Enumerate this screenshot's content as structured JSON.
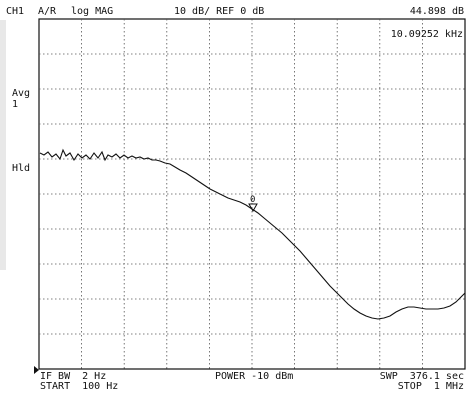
{
  "header": {
    "channel": "CH1",
    "measurement": "A/R",
    "format": "log MAG",
    "scale_ref": "10 dB/ REF 0 dB",
    "marker_value": "44.898 dB"
  },
  "marker": {
    "frequency": "10.09252 kHz",
    "label": "0"
  },
  "side_labels": {
    "avg": "Avg",
    "avg_count": "1",
    "hold": "Hld"
  },
  "footer": {
    "if_bw": "IF BW  2 Hz",
    "start": "START  100 Hz",
    "power": "POWER -10 dBm",
    "sweep": "SWP  376.1 sec",
    "stop": "STOP  1 MHz"
  },
  "trace": {
    "color": "#111111",
    "grid_color": "#555555"
  }
}
